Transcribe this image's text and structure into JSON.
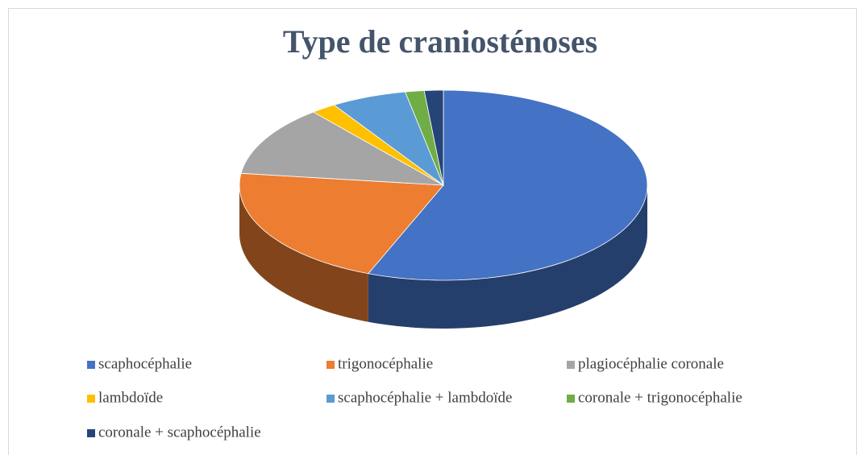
{
  "chart_data": {
    "type": "pie3d",
    "title": "Type de craniosténoses",
    "categories": [
      "scaphocéphalie",
      "trigonocéphalie",
      "plagiocéphalie coronale",
      "lambdoïde",
      "scaphocéphalie + lambdoïde",
      "coronale + trigonocéphalie",
      "coronale + scaphocéphalie"
    ],
    "values": [
      56,
      21,
      12,
      2,
      6,
      1.5,
      1.5
    ],
    "colors": [
      "#4472c4",
      "#ed7d31",
      "#a5a5a5",
      "#ffc000",
      "#5b9bd5",
      "#70ad47",
      "#264478"
    ],
    "legend": "bottom"
  }
}
